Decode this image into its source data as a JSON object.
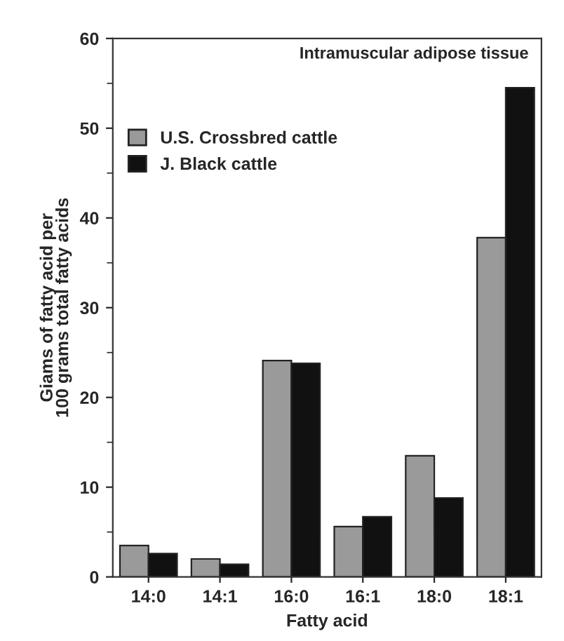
{
  "chart_data": {
    "type": "bar",
    "xlabel": "Fatty acid",
    "ylabel": "Giams of fatty acid per\n100 grams total fatty acids",
    "annotations": [
      "Intramuscular adipose tissue"
    ],
    "categories": [
      "14:0",
      "14:1",
      "16:0",
      "16:1",
      "18:0",
      "18:1"
    ],
    "series": [
      {
        "name": "U.S. Crossbred cattle",
        "color": "#9a9a9a",
        "values": [
          3.5,
          2.0,
          24.1,
          5.6,
          13.5,
          37.8
        ]
      },
      {
        "name": "J. Black cattle",
        "color": "#111111",
        "values": [
          2.6,
          1.4,
          23.8,
          6.7,
          8.8,
          54.5
        ]
      }
    ],
    "ylim": [
      0,
      60
    ],
    "yticks": [
      0,
      {
        "value": 5,
        "label": null
      },
      10,
      {
        "value": 15,
        "label": null
      },
      20,
      {
        "value": 25,
        "label": null
      },
      30,
      {
        "value": 35,
        "label": null
      },
      40,
      {
        "value": 45,
        "label": null
      },
      50,
      {
        "value": 55,
        "label": null
      },
      60
    ],
    "grid": false,
    "legend": "top left"
  }
}
